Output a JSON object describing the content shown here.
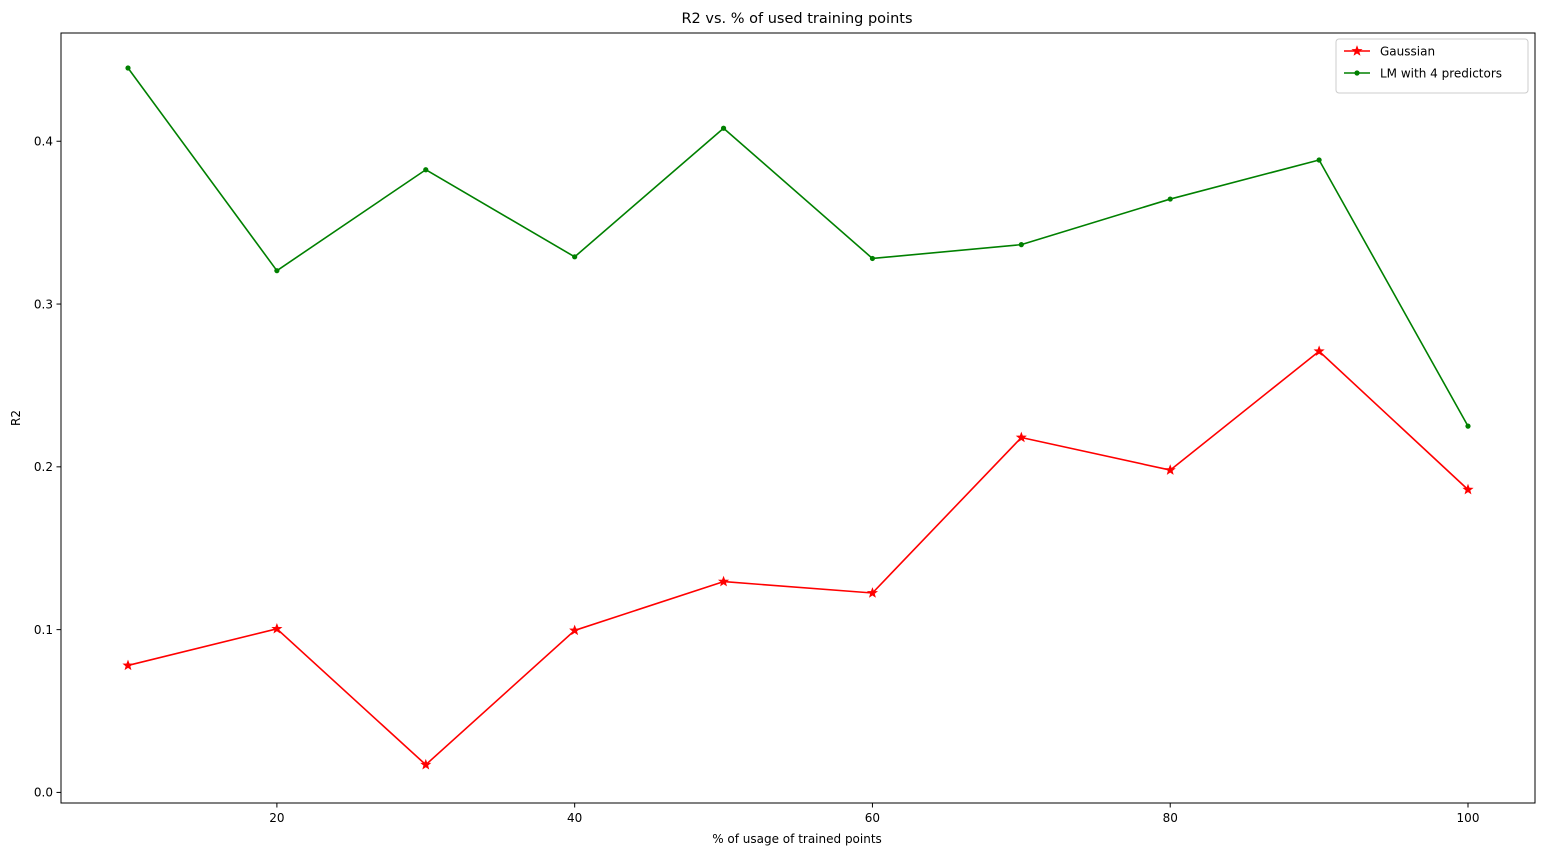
{
  "chart_data": {
    "type": "line",
    "title": "R2 vs. % of used training points",
    "xlabel": "% of usage of trained points",
    "ylabel": "R2",
    "x": [
      10,
      20,
      30,
      40,
      50,
      60,
      70,
      80,
      90,
      100
    ],
    "xlim": [
      5.5,
      104.5
    ],
    "ylim": [
      -0.0065,
      0.4665
    ],
    "x_ticks": [
      20,
      40,
      60,
      80,
      100
    ],
    "y_ticks": [
      0.0,
      0.1,
      0.2,
      0.3,
      0.4
    ],
    "y_tick_labels": [
      "0.0",
      "0.1",
      "0.2",
      "0.3",
      "0.4"
    ],
    "grid": false,
    "legend_position": "top-right",
    "series": [
      {
        "name": "Gaussian",
        "color": "#ff0000",
        "marker": "star",
        "values": [
          0.078,
          0.1005,
          0.017,
          0.0995,
          0.1295,
          0.1225,
          0.218,
          0.198,
          0.271,
          0.186
        ]
      },
      {
        "name": "LM with 4 predictors",
        "color": "#008000",
        "marker": "dot",
        "values": [
          0.445,
          0.3205,
          0.3825,
          0.329,
          0.408,
          0.328,
          0.3365,
          0.3645,
          0.3885,
          0.225
        ]
      }
    ]
  }
}
